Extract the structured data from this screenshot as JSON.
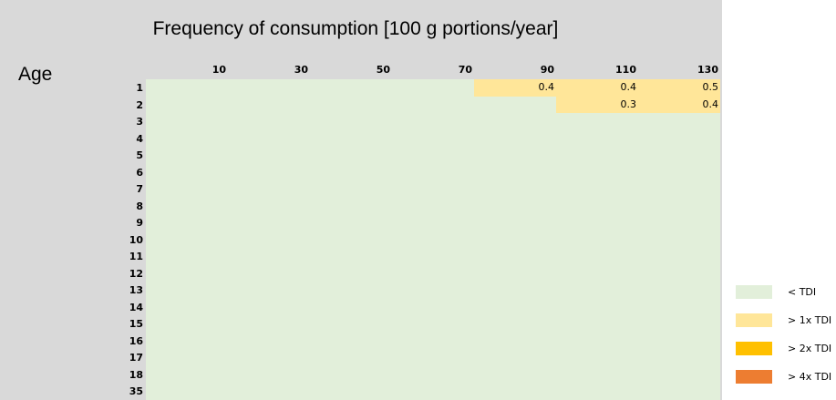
{
  "header": {
    "title": "Frequency of consumption [100 g portions/year]",
    "row_label": "Age"
  },
  "table": {
    "columns": [
      "10",
      "30",
      "50",
      "70",
      "90",
      "110",
      "130"
    ],
    "rows": [
      {
        "age": "1",
        "cells": [
          null,
          null,
          null,
          null,
          "0.4",
          "0.4",
          "0.5"
        ]
      },
      {
        "age": "2",
        "cells": [
          null,
          null,
          null,
          null,
          null,
          "0.3",
          "0.4"
        ]
      },
      {
        "age": "3",
        "cells": [
          null,
          null,
          null,
          null,
          null,
          null,
          null
        ]
      },
      {
        "age": "4",
        "cells": [
          null,
          null,
          null,
          null,
          null,
          null,
          null
        ]
      },
      {
        "age": "5",
        "cells": [
          null,
          null,
          null,
          null,
          null,
          null,
          null
        ]
      },
      {
        "age": "6",
        "cells": [
          null,
          null,
          null,
          null,
          null,
          null,
          null
        ]
      },
      {
        "age": "7",
        "cells": [
          null,
          null,
          null,
          null,
          null,
          null,
          null
        ]
      },
      {
        "age": "8",
        "cells": [
          null,
          null,
          null,
          null,
          null,
          null,
          null
        ]
      },
      {
        "age": "9",
        "cells": [
          null,
          null,
          null,
          null,
          null,
          null,
          null
        ]
      },
      {
        "age": "10",
        "cells": [
          null,
          null,
          null,
          null,
          null,
          null,
          null
        ]
      },
      {
        "age": "11",
        "cells": [
          null,
          null,
          null,
          null,
          null,
          null,
          null
        ]
      },
      {
        "age": "12",
        "cells": [
          null,
          null,
          null,
          null,
          null,
          null,
          null
        ]
      },
      {
        "age": "13",
        "cells": [
          null,
          null,
          null,
          null,
          null,
          null,
          null
        ]
      },
      {
        "age": "14",
        "cells": [
          null,
          null,
          null,
          null,
          null,
          null,
          null
        ]
      },
      {
        "age": "15",
        "cells": [
          null,
          null,
          null,
          null,
          null,
          null,
          null
        ]
      },
      {
        "age": "16",
        "cells": [
          null,
          null,
          null,
          null,
          null,
          null,
          null
        ]
      },
      {
        "age": "17",
        "cells": [
          null,
          null,
          null,
          null,
          null,
          null,
          null
        ]
      },
      {
        "age": "18",
        "cells": [
          null,
          null,
          null,
          null,
          null,
          null,
          null
        ]
      },
      {
        "age": "35",
        "cells": [
          null,
          null,
          null,
          null,
          null,
          null,
          null
        ]
      }
    ]
  },
  "legend": [
    {
      "label": "< TDI",
      "color": "#e2efda"
    },
    {
      "label": "> 1x TDI",
      "color": "#ffe699"
    },
    {
      "label": "> 2x TDI",
      "color": "#ffc000"
    },
    {
      "label": "> 4x TDI",
      "color": "#ed7d31"
    }
  ]
}
